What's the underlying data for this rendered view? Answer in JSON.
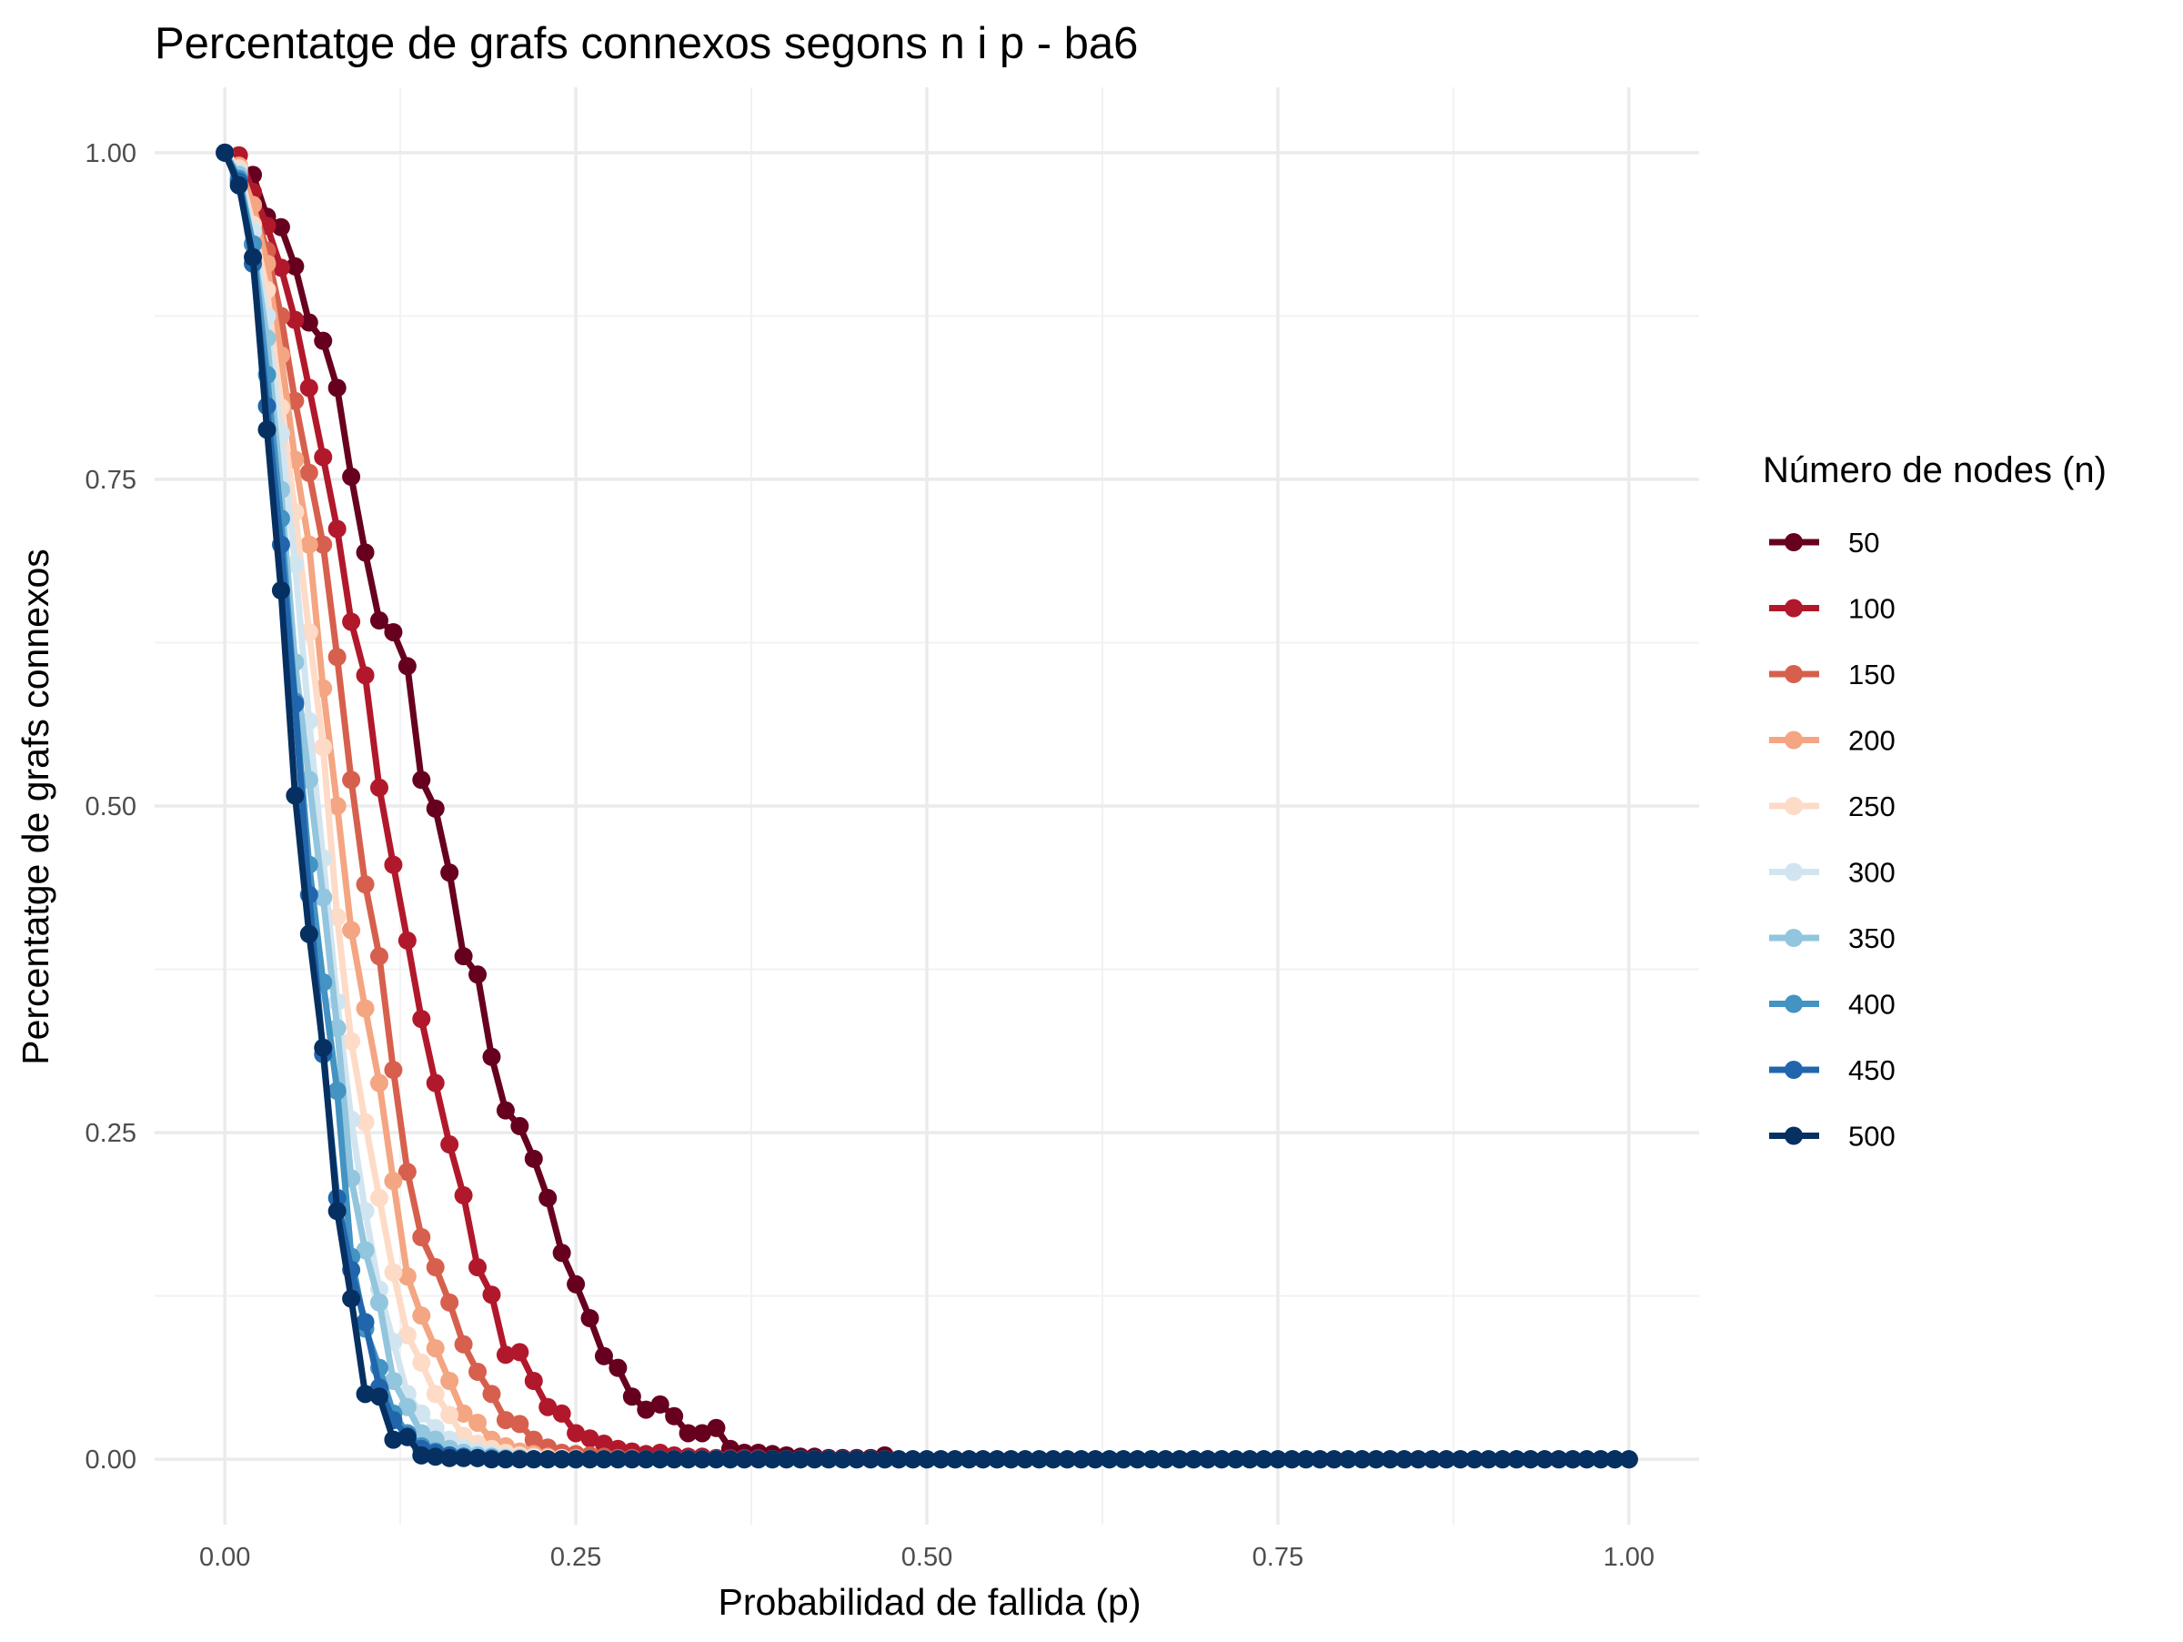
{
  "chart_data": {
    "type": "line",
    "title": "Percentatge de grafs connexos segons n i p - ba6",
    "xlabel": "Probabilidad de fallida (p)",
    "ylabel": "Percentatge de grafs connexos",
    "xlim": [
      -0.05,
      1.05
    ],
    "ylim": [
      -0.05,
      1.05
    ],
    "x_ticks": [
      0,
      0.25,
      0.5,
      0.75,
      1
    ],
    "x_tick_labels": [
      "0.00",
      "0.25",
      "0.50",
      "0.75",
      "1.00"
    ],
    "y_ticks": [
      0,
      0.25,
      0.5,
      0.75,
      1
    ],
    "y_tick_labels": [
      "0.00",
      "0.25",
      "0.50",
      "0.75",
      "1.00"
    ],
    "grid": true,
    "legend_title": "Número de nodes (n)",
    "legend_position": "right",
    "x_step": 0.01,
    "series": [
      {
        "name": "50",
        "color": "#67001f",
        "values": [
          1,
          0.985,
          0.983,
          0.951,
          0.943,
          0.913,
          0.87,
          0.856,
          0.82,
          0.752,
          0.694,
          0.642,
          0.633,
          0.607,
          0.52,
          0.498,
          0.449,
          0.385,
          0.371,
          0.308,
          0.267,
          0.255,
          0.23,
          0.2,
          0.158,
          0.134,
          0.108,
          0.079,
          0.07,
          0.048,
          0.038,
          0.042,
          0.033,
          0.02,
          0.02,
          0.024,
          0.008,
          0.005,
          0.005,
          0.004,
          0.003,
          0.002,
          0.002,
          0.001,
          0.001,
          0.001,
          0.001,
          0.003
        ]
      },
      {
        "name": "100",
        "color": "#b2182b",
        "values": [
          1,
          0.998,
          0.97,
          0.944,
          0.912,
          0.872,
          0.82,
          0.767,
          0.712,
          0.641,
          0.6,
          0.514,
          0.455,
          0.397,
          0.337,
          0.288,
          0.241,
          0.202,
          0.147,
          0.126,
          0.08,
          0.082,
          0.06,
          0.04,
          0.035,
          0.02,
          0.016,
          0.012,
          0.008,
          0.006,
          0.004,
          0.005,
          0.003,
          0.002,
          0.002,
          0.001,
          0.001,
          0.001,
          0.001
        ]
      },
      {
        "name": "150",
        "color": "#d6604d",
        "values": [
          1,
          0.99,
          0.96,
          0.925,
          0.875,
          0.81,
          0.755,
          0.7,
          0.614,
          0.52,
          0.44,
          0.385,
          0.298,
          0.22,
          0.17,
          0.147,
          0.12,
          0.088,
          0.067,
          0.05,
          0.03,
          0.027,
          0.015,
          0.009,
          0.005,
          0.004,
          0.003,
          0.002,
          0.001,
          0.001
        ]
      },
      {
        "name": "200",
        "color": "#f4a582",
        "values": [
          1,
          0.99,
          0.96,
          0.915,
          0.845,
          0.765,
          0.7,
          0.59,
          0.5,
          0.405,
          0.345,
          0.288,
          0.213,
          0.14,
          0.11,
          0.085,
          0.06,
          0.035,
          0.028,
          0.015,
          0.01,
          0.006,
          0.004,
          0.002,
          0.001,
          0.001
        ]
      },
      {
        "name": "250",
        "color": "#fddbc7",
        "values": [
          1,
          0.988,
          0.945,
          0.895,
          0.805,
          0.725,
          0.633,
          0.545,
          0.415,
          0.32,
          0.258,
          0.2,
          0.143,
          0.095,
          0.074,
          0.05,
          0.034,
          0.018,
          0.012,
          0.008,
          0.005,
          0.003,
          0.002,
          0.001,
          0.001
        ]
      },
      {
        "name": "300",
        "color": "#d1e5f0",
        "values": [
          1,
          0.985,
          0.94,
          0.875,
          0.785,
          0.685,
          0.565,
          0.46,
          0.35,
          0.26,
          0.19,
          0.13,
          0.09,
          0.05,
          0.035,
          0.024,
          0.015,
          0.009,
          0.006,
          0.004,
          0.002,
          0.001,
          0.001
        ]
      },
      {
        "name": "350",
        "color": "#92c5de",
        "values": [
          1,
          0.983,
          0.93,
          0.858,
          0.742,
          0.61,
          0.52,
          0.43,
          0.33,
          0.215,
          0.16,
          0.12,
          0.06,
          0.04,
          0.02,
          0.015,
          0.008,
          0.005,
          0.003,
          0.002,
          0.001,
          0.001
        ]
      },
      {
        "name": "400",
        "color": "#4393c3",
        "values": [
          1,
          0.98,
          0.93,
          0.83,
          0.72,
          0.58,
          0.455,
          0.365,
          0.282,
          0.155,
          0.1,
          0.07,
          0.035,
          0.02,
          0.01,
          0.006,
          0.003,
          0.002,
          0.001,
          0.001
        ]
      },
      {
        "name": "450",
        "color": "#2166ac",
        "values": [
          1,
          0.978,
          0.915,
          0.806,
          0.7,
          0.578,
          0.432,
          0.31,
          0.2,
          0.145,
          0.105,
          0.055,
          0.03,
          0.018,
          0.008,
          0.005,
          0.003,
          0.002,
          0.001
        ]
      },
      {
        "name": "500",
        "color": "#053061",
        "values": [
          1,
          0.975,
          0.92,
          0.788,
          0.665,
          0.508,
          0.402,
          0.315,
          0.19,
          0.123,
          0.05,
          0.048,
          0.015,
          0.017,
          0.003,
          0.002,
          0.001,
          0.001,
          0.001
        ]
      }
    ]
  }
}
